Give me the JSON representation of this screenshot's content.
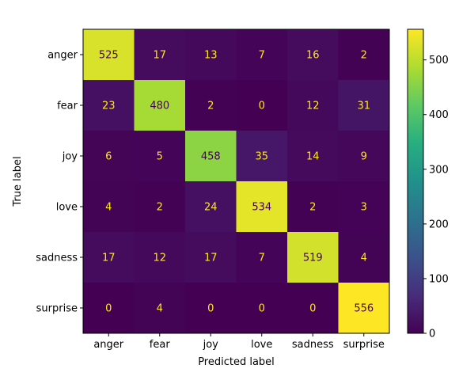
{
  "chart_data": {
    "type": "heatmap",
    "title": "",
    "xlabel": "Predicted label",
    "ylabel": "True label",
    "x_categories": [
      "anger",
      "fear",
      "joy",
      "love",
      "sadness",
      "surprise"
    ],
    "y_categories": [
      "anger",
      "fear",
      "joy",
      "love",
      "sadness",
      "surprise"
    ],
    "values": [
      [
        525,
        17,
        13,
        7,
        16,
        2
      ],
      [
        23,
        480,
        2,
        0,
        12,
        31
      ],
      [
        6,
        5,
        458,
        35,
        14,
        9
      ],
      [
        4,
        2,
        24,
        534,
        2,
        3
      ],
      [
        17,
        12,
        17,
        7,
        519,
        4
      ],
      [
        0,
        4,
        0,
        0,
        0,
        556
      ]
    ],
    "colormap": "viridis",
    "value_range": [
      0,
      556
    ],
    "text_color_low": "#fde725",
    "text_color_high": "#440154",
    "colorbar": {
      "ticks": [
        0,
        100,
        200,
        300,
        400,
        500
      ],
      "tick_labels": [
        "0",
        "100",
        "200",
        "300",
        "400",
        "500"
      ]
    }
  }
}
